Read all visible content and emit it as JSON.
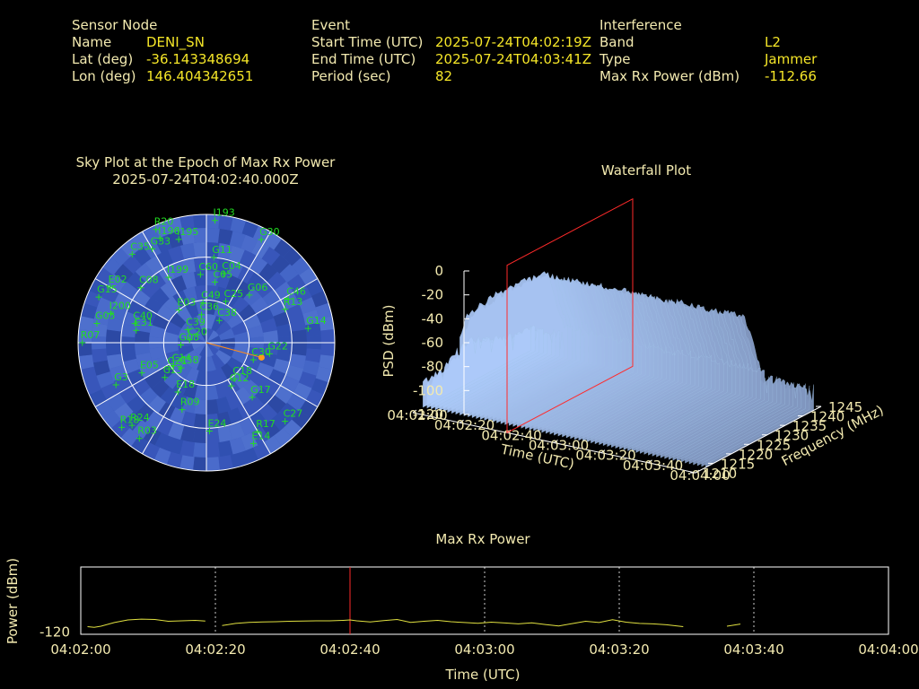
{
  "header": {
    "sensor": {
      "heading": "Sensor Node",
      "rows": [
        {
          "label": "Name",
          "value": "DENI_SN"
        },
        {
          "label": "Lat (deg)",
          "value": "-36.143348694"
        },
        {
          "label": "Lon (deg)",
          "value": "146.404342651"
        }
      ]
    },
    "event": {
      "heading": "Event",
      "rows": [
        {
          "label": "Start Time (UTC)",
          "value": "2025-07-24T04:02:19Z"
        },
        {
          "label": "End Time (UTC)",
          "value": "2025-07-24T04:03:41Z"
        },
        {
          "label": "Period (sec)",
          "value": "82"
        }
      ]
    },
    "interference": {
      "heading": "Interference",
      "rows": [
        {
          "label": "Band",
          "value": "L2"
        },
        {
          "label": "Type",
          "value": "Jammer"
        },
        {
          "label": "Max Rx Power (dBm)",
          "value": "-112.66"
        }
      ]
    }
  },
  "sky_plot": {
    "title_line1": "Sky Plot at the Epoch of Max Rx Power",
    "title_line2": "2025-07-24T04:02:40.000Z"
  },
  "waterfall": {
    "title": "Waterfall Plot"
  },
  "colors": {
    "satellite": "#22dd22",
    "max_marker": "#ff2a2a",
    "trace": "#e0e040",
    "text": "#f3eab0",
    "value": "#f5e628",
    "sky_fill": "#3a5bbf"
  },
  "chart_data": [
    {
      "type": "scatter",
      "subtype": "polar-sky",
      "title": "Sky Plot at the Epoch of Max Rx Power",
      "subtitle": "2025-07-24T04:02:40.000Z",
      "note": "azimuth in degrees (0 = north, clockwise), elevation in degrees",
      "satellites": [
        {
          "name": "I193",
          "az": 4,
          "el": 4
        },
        {
          "name": "G30",
          "az": 28,
          "el": 8
        },
        {
          "name": "R20",
          "az": 336,
          "el": 3
        },
        {
          "name": "I196",
          "az": 336,
          "el": 10
        },
        {
          "name": "I195",
          "az": 345,
          "el": 15
        },
        {
          "name": "C35",
          "az": 320,
          "el": 9
        },
        {
          "name": "G33",
          "az": 330,
          "el": 14
        },
        {
          "name": "G11",
          "az": 5,
          "el": 30
        },
        {
          "name": "E02",
          "az": 300,
          "el": 12
        },
        {
          "name": "C08",
          "az": 310,
          "el": 30
        },
        {
          "name": "I199",
          "az": 330,
          "el": 37
        },
        {
          "name": "C60",
          "az": 355,
          "el": 42
        },
        {
          "name": "C04",
          "az": 14,
          "el": 40
        },
        {
          "name": "C05",
          "az": 8,
          "el": 47
        },
        {
          "name": "G15",
          "az": 293,
          "el": 8
        },
        {
          "name": "I200",
          "az": 287,
          "el": 20
        },
        {
          "name": "C40",
          "az": 285,
          "el": 38
        },
        {
          "name": "E31",
          "az": 280,
          "el": 40
        },
        {
          "name": "G05",
          "az": 280,
          "el": 12
        },
        {
          "name": "C49",
          "az": 355,
          "el": 62
        },
        {
          "name": "C25",
          "az": 25,
          "el": 58
        },
        {
          "name": "G06",
          "az": 42,
          "el": 45
        },
        {
          "name": "C46",
          "az": 62,
          "el": 25
        },
        {
          "name": "R13",
          "az": 67,
          "el": 30
        },
        {
          "name": "E03",
          "az": 320,
          "el": 60
        },
        {
          "name": "C36",
          "az": 350,
          "el": 70
        },
        {
          "name": "C39",
          "az": 305,
          "el": 74
        },
        {
          "name": "C38",
          "az": 30,
          "el": 72
        },
        {
          "name": "G14",
          "az": 82,
          "el": 18
        },
        {
          "name": "R07",
          "az": 270,
          "el": 3
        },
        {
          "name": "G08",
          "az": 265,
          "el": 72
        },
        {
          "name": "C20",
          "az": 280,
          "el": 78
        },
        {
          "name": "G22",
          "az": 100,
          "el": 45
        },
        {
          "name": "C30",
          "az": 110,
          "el": 55
        },
        {
          "name": "E05",
          "az": 245,
          "el": 40
        },
        {
          "name": "G21",
          "az": 235,
          "el": 58
        },
        {
          "name": "C58",
          "az": 225,
          "el": 65
        },
        {
          "name": "C14",
          "az": 235,
          "el": 62
        },
        {
          "name": "C13",
          "az": 230,
          "el": 52
        },
        {
          "name": "C18",
          "az": 142,
          "el": 58
        },
        {
          "name": "C12",
          "az": 150,
          "el": 55
        },
        {
          "name": "G17",
          "az": 140,
          "el": 40
        },
        {
          "name": "E18",
          "az": 210,
          "el": 50
        },
        {
          "name": "R09",
          "az": 200,
          "el": 40
        },
        {
          "name": "G3",
          "az": 245,
          "el": 20
        },
        {
          "name": "R18",
          "az": 225,
          "el": 6
        },
        {
          "name": "R03",
          "az": 215,
          "el": 8
        },
        {
          "name": "R24",
          "az": 222,
          "el": 12
        },
        {
          "name": "E24",
          "az": 178,
          "el": 28
        },
        {
          "name": "R17",
          "az": 150,
          "el": 18
        },
        {
          "name": "C27",
          "az": 135,
          "el": 12
        },
        {
          "name": "E14",
          "az": 155,
          "el": 12
        }
      ],
      "max_rx_direction": {
        "az": 105,
        "el": 50
      }
    },
    {
      "type": "area",
      "subtype": "3d-waterfall-surface",
      "title": "Waterfall Plot",
      "zlabel": "PSD (dBm)",
      "zlim": [
        -120,
        0
      ],
      "zticks": [
        0,
        -20,
        -40,
        -60,
        -80,
        -100,
        -120
      ],
      "xlabel": "Time (UTC)",
      "xticks": [
        "04:02:00",
        "04:02:20",
        "04:02:40",
        "04:03:00",
        "04:03:20",
        "04:03:40",
        "04:04:00"
      ],
      "ylabel": "Frequency (MHz)",
      "yticks": [
        1210,
        1215,
        1220,
        1225,
        1230,
        1235,
        1240,
        1245
      ],
      "marker_time": "04:02:40"
    },
    {
      "type": "line",
      "title": "Max Rx Power",
      "xlabel": "Time (UTC)",
      "ylabel": "Power (dBm)",
      "xticks": [
        "04:02:00",
        "04:02:20",
        "04:02:40",
        "04:03:00",
        "04:03:20",
        "04:03:40",
        "04:04:00"
      ],
      "yticks": [
        -120
      ],
      "x_range_sec": [
        0,
        120
      ],
      "marker_sec": 40,
      "series": [
        {
          "segments": [
            {
              "x": [
                1,
                2,
                3,
                5,
                7,
                9,
                11,
                13,
                15,
                17,
                18.5
              ],
              "y": [
                -117.5,
                -117.8,
                -117.3,
                -115.6,
                -114.4,
                -114.0,
                -114.2,
                -115.0,
                -114.8,
                -114.6,
                -114.9
              ]
            },
            {
              "x": [
                21,
                23,
                25,
                27,
                29,
                31,
                33,
                35,
                37,
                39,
                40,
                41,
                43,
                45,
                47,
                49,
                51,
                53,
                55,
                57,
                59,
                61,
                63,
                65,
                67,
                69,
                71,
                73,
                75,
                77,
                79,
                81,
                83,
                85,
                87,
                89.5
              ],
              "y": [
                -117.0,
                -116.0,
                -115.5,
                -115.3,
                -115.2,
                -115.0,
                -114.9,
                -114.8,
                -114.8,
                -114.6,
                -114.4,
                -114.8,
                -115.3,
                -114.7,
                -114.2,
                -115.5,
                -115.0,
                -114.6,
                -115.2,
                -115.6,
                -115.9,
                -115.4,
                -115.8,
                -116.2,
                -115.7,
                -116.5,
                -117.2,
                -116.1,
                -115.0,
                -115.6,
                -114.3,
                -115.4,
                -116.0,
                -116.2,
                -116.6,
                -117.5
              ]
            },
            {
              "x": [
                96,
                98
              ],
              "y": [
                -117.3,
                -116.3
              ]
            }
          ]
        }
      ],
      "ylim": [
        -121,
        -90
      ]
    }
  ]
}
